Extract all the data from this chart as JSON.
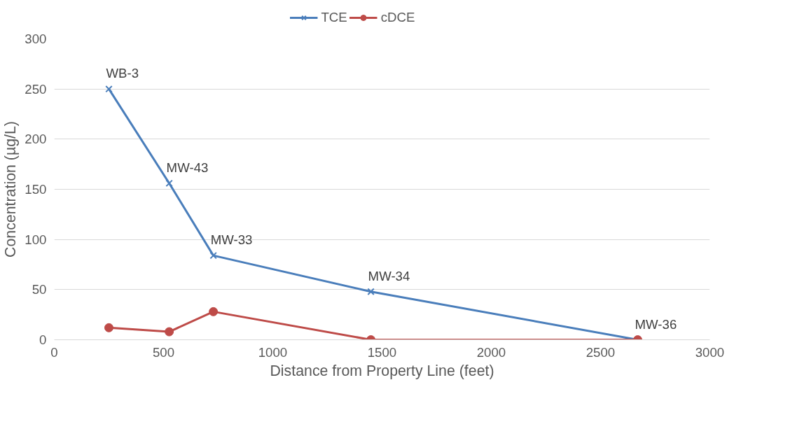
{
  "chart_data": {
    "type": "line",
    "xlabel": "Distance from Property Line (feet)",
    "ylabel": "Concentration (µg/L)",
    "x": [
      250,
      526,
      728,
      1449,
      2670
    ],
    "series": [
      {
        "name": "TCE",
        "color": "#4a7ebb",
        "marker": "cross",
        "values": [
          250,
          156,
          84,
          48,
          0
        ]
      },
      {
        "name": "cDCE",
        "color": "#be4b48",
        "marker": "circle",
        "values": [
          12,
          8,
          28,
          0,
          0
        ]
      }
    ],
    "xlim": [
      0,
      3000
    ],
    "xticks": [
      0,
      500,
      1000,
      1500,
      2000,
      2500,
      3000
    ],
    "ylim": [
      0,
      300
    ],
    "yticks": [
      0,
      50,
      100,
      150,
      200,
      250,
      300
    ],
    "grid": "y",
    "legend": "top",
    "annotations": [
      {
        "text": "WB-3",
        "x": 250,
        "y": 250
      },
      {
        "text": "MW-43",
        "x": 526,
        "y": 156
      },
      {
        "text": "MW-33",
        "x": 728,
        "y": 84
      },
      {
        "text": "MW-34",
        "x": 1449,
        "y": 48
      },
      {
        "text": "MW-36",
        "x": 2670,
        "y": 0
      }
    ]
  }
}
